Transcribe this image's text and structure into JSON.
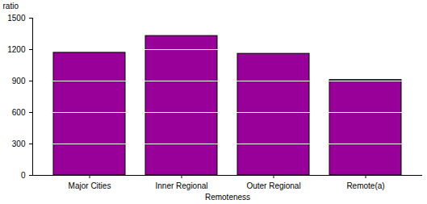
{
  "chart_data": {
    "type": "bar",
    "categories": [
      "Major Cities",
      "Inner Regional",
      "Outer Regional",
      "Remote(a)"
    ],
    "values": [
      1170,
      1330,
      1160,
      910
    ],
    "color": "#990099",
    "x_label": "Remoteness",
    "y_label": "ratio",
    "ylim": [
      0,
      1500
    ],
    "yticks": [
      0,
      300,
      600,
      900,
      1200,
      1500
    ],
    "grid": true
  }
}
